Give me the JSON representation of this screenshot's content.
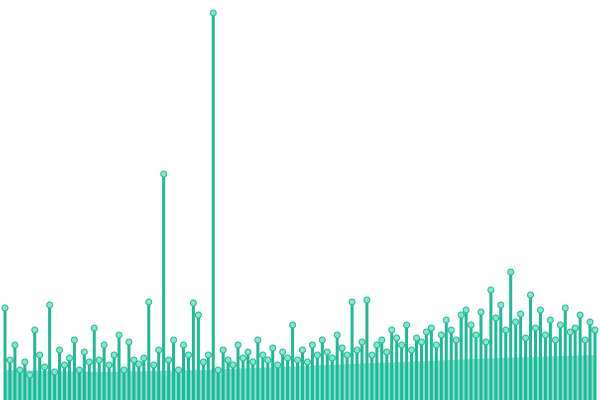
{
  "chart_data": {
    "type": "lollipop",
    "ylim": [
      0,
      400
    ],
    "xlim": [
      0,
      119
    ],
    "color": "#1fb996",
    "marker_fill": "#86e3cc",
    "values": [
      92,
      40,
      55,
      30,
      38,
      25,
      70,
      45,
      33,
      95,
      28,
      50,
      35,
      42,
      60,
      30,
      48,
      38,
      72,
      40,
      55,
      35,
      45,
      65,
      30,
      58,
      40,
      36,
      42,
      98,
      35,
      50,
      226,
      40,
      60,
      30,
      55,
      45,
      97,
      85,
      38,
      45,
      387,
      30,
      50,
      40,
      35,
      55,
      42,
      48,
      38,
      60,
      45,
      40,
      52,
      35,
      48,
      42,
      75,
      40,
      50,
      38,
      55,
      45,
      60,
      48,
      42,
      65,
      52,
      45,
      98,
      50,
      58,
      100,
      45,
      55,
      60,
      48,
      70,
      62,
      55,
      75,
      50,
      62,
      58,
      68,
      72,
      55,
      65,
      80,
      70,
      60,
      85,
      90,
      75,
      65,
      88,
      58,
      110,
      82,
      95,
      70,
      128,
      78,
      86,
      62,
      105,
      72,
      90,
      65,
      80,
      60,
      75,
      92,
      68,
      72,
      85,
      60,
      78,
      70
    ],
    "area": {
      "color": "#86e0cc",
      "x": [
        0,
        20,
        40,
        60,
        80,
        100,
        119
      ],
      "values": [
        30,
        28,
        30,
        34,
        38,
        42,
        45
      ]
    }
  }
}
